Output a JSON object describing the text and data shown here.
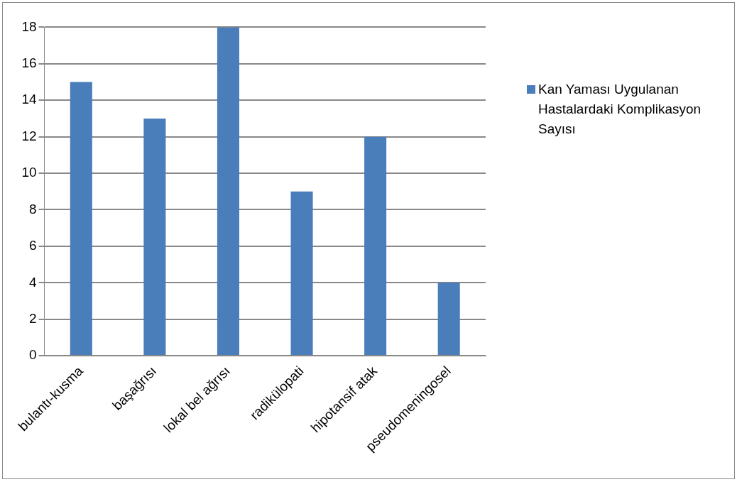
{
  "chart_data": {
    "type": "bar",
    "categories": [
      "bulantı-kusma",
      "başağrısı",
      "lokal bel ağrısı",
      "radikülopati",
      "hipotansif atak",
      "pseudomeningosel"
    ],
    "series": [
      {
        "name": "Kan Yaması Uygulanan Hastalardaki Komplikasyon Sayısı",
        "color": "#4a7ebb",
        "values": [
          15,
          13,
          18,
          9,
          12,
          4
        ]
      }
    ],
    "ylim": [
      0,
      18
    ],
    "yticks": [
      0,
      2,
      4,
      6,
      8,
      10,
      12,
      14,
      16,
      18
    ],
    "grid": "y",
    "legend": "right"
  }
}
